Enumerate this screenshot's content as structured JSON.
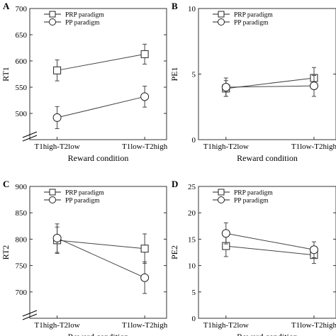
{
  "chart_data": [
    {
      "panel_letter": "A",
      "type": "line",
      "ylabel": "RT1",
      "xlabel": "Reward condition",
      "categories": [
        "T1high-T2low",
        "T1low-T2high"
      ],
      "ylim": [
        450,
        700
      ],
      "yticks": [
        450,
        500,
        550,
        600,
        650,
        700
      ],
      "ytick_labels": [
        "",
        "500",
        "550",
        "600",
        "650",
        "700"
      ],
      "axis_break": true,
      "legend_position": "top-right",
      "series": [
        {
          "name": "PRP paradigm",
          "marker": "square",
          "values": [
            582,
            613
          ],
          "errors": [
            20,
            19
          ]
        },
        {
          "name": "PP paradigm",
          "marker": "circle",
          "values": [
            492,
            532
          ],
          "errors": [
            21,
            20
          ]
        }
      ]
    },
    {
      "panel_letter": "B",
      "type": "line",
      "ylabel": "PE1",
      "xlabel": "Reward condition",
      "categories": [
        "T1high-T2low",
        "T1low-T2high"
      ],
      "ylim": [
        0,
        10
      ],
      "yticks": [
        0,
        5,
        10
      ],
      "ytick_labels": [
        "0",
        "5",
        "10"
      ],
      "axis_break": false,
      "legend_position": "top-right",
      "series": [
        {
          "name": "PRP paradigm",
          "marker": "square",
          "values": [
            3.9,
            4.7
          ],
          "errors": [
            0.6,
            0.8
          ]
        },
        {
          "name": "PP paradigm",
          "marker": "circle",
          "values": [
            4.0,
            4.1
          ],
          "errors": [
            0.7,
            0.8
          ]
        }
      ]
    },
    {
      "panel_letter": "C",
      "type": "line",
      "ylabel": "RT2",
      "xlabel": "Reward condition",
      "categories": [
        "T1high-T2low",
        "T1low-T2high"
      ],
      "ylim": [
        650,
        900
      ],
      "yticks": [
        650,
        700,
        750,
        800,
        850,
        900
      ],
      "ytick_labels": [
        "",
        "700",
        "750",
        "800",
        "850",
        "900"
      ],
      "axis_break": true,
      "legend_position": "top-right",
      "series": [
        {
          "name": "PRP paradigm",
          "marker": "square",
          "values": [
            798,
            782
          ],
          "errors": [
            25,
            28
          ]
        },
        {
          "name": "PP paradigm",
          "marker": "circle",
          "values": [
            802,
            727
          ],
          "errors": [
            27,
            30
          ]
        }
      ]
    },
    {
      "panel_letter": "D",
      "type": "line",
      "ylabel": "PE2",
      "xlabel": "Reward condition",
      "categories": [
        "T1high-T2low",
        "T1low-T2high"
      ],
      "ylim": [
        0,
        25
      ],
      "yticks": [
        0,
        5,
        10,
        15,
        20,
        25
      ],
      "ytick_labels": [
        "0",
        "5",
        "10",
        "15",
        "20",
        "25"
      ],
      "axis_break": false,
      "legend_position": "top-right",
      "series": [
        {
          "name": "PRP paradigm",
          "marker": "square",
          "values": [
            13.7,
            12.0
          ],
          "errors": [
            2.0,
            1.6
          ]
        },
        {
          "name": "PP paradigm",
          "marker": "circle",
          "values": [
            16.1,
            13.0
          ],
          "errors": [
            2.0,
            1.5
          ]
        }
      ]
    }
  ]
}
